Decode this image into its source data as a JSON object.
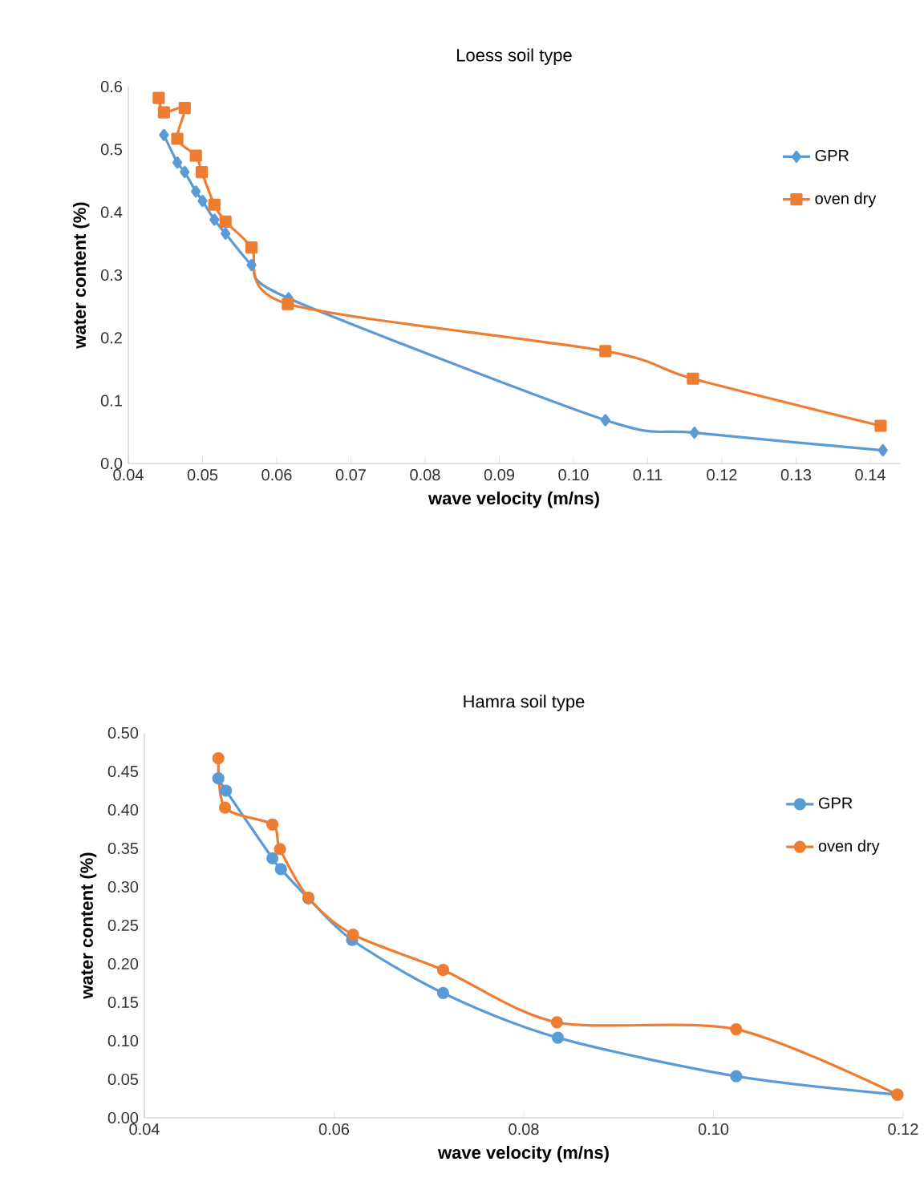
{
  "chart_data": [
    {
      "type": "line",
      "title": "Loess soil type",
      "xlabel": "wave velocity (m/ns)",
      "ylabel": "water content (%)",
      "xlim": [
        0.04,
        0.144
      ],
      "xticks": [
        0.04,
        0.05,
        0.06,
        0.07,
        0.08,
        0.09,
        {
          "value": 0.1,
          "label": "0.10"
        },
        0.11,
        0.12,
        0.13,
        0.14
      ],
      "ylim": [
        0,
        0.6
      ],
      "yticks": [
        {
          "value": 0,
          "label": "0.0"
        },
        0.1,
        0.2,
        0.3,
        0.4,
        0.5,
        0.6
      ],
      "legend": "right",
      "grid": false,
      "series": [
        {
          "name": "GPR",
          "color": "#5b9bd5",
          "marker": "diamond",
          "x": [
            0.0448,
            0.0466,
            0.0476,
            0.0491,
            0.05,
            0.0516,
            0.0531,
            0.0566,
            0.0616,
            0.1043,
            0.1163,
            0.1417
          ],
          "values": [
            0.523,
            0.479,
            0.464,
            0.433,
            0.418,
            0.388,
            0.366,
            0.316,
            0.263,
            0.069,
            0.049,
            0.021
          ]
        },
        {
          "name": "oven dry",
          "color": "#ed7d31",
          "marker": "square",
          "x": [
            0.0441,
            0.0448,
            0.0476,
            0.0466,
            0.0491,
            0.0499,
            0.0516,
            0.0531,
            0.0566,
            0.0615,
            0.1043,
            0.1161,
            0.1414
          ],
          "values": [
            0.582,
            0.559,
            0.566,
            0.517,
            0.49,
            0.464,
            0.412,
            0.385,
            0.344,
            0.254,
            0.179,
            0.135,
            0.06
          ]
        }
      ]
    },
    {
      "type": "line",
      "title": "Hamra soil type",
      "xlabel": "wave velocity (m/ns)",
      "ylabel": "water content (%)",
      "xlim": [
        0.04,
        0.12
      ],
      "xticks": [
        0.04,
        0.06,
        0.08,
        {
          "value": 0.1,
          "label": "0.10"
        },
        0.12
      ],
      "ylim": [
        0,
        0.5
      ],
      "yticks": [
        {
          "value": 0,
          "label": "0.00"
        },
        0.05,
        {
          "value": 0.1,
          "label": "0.10"
        },
        0.15,
        {
          "value": 0.2,
          "label": "0.20"
        },
        0.25,
        {
          "value": 0.3,
          "label": "0.30"
        },
        0.35,
        {
          "value": 0.4,
          "label": "0.40"
        },
        0.45,
        {
          "value": 0.5,
          "label": "0.50"
        }
      ],
      "legend": "right",
      "grid": false,
      "marker": "circle",
      "series": [
        {
          "name": "GPR",
          "color": "#5b9bd5",
          "x": [
            0.0478,
            0.0486,
            0.0535,
            0.0544,
            0.0573,
            0.0619,
            0.0715,
            0.0836,
            0.1024,
            0.1194
          ],
          "values": [
            0.441,
            0.425,
            0.337,
            0.323,
            0.285,
            0.231,
            0.162,
            0.104,
            0.054,
            0.03
          ]
        },
        {
          "name": "oven dry",
          "color": "#ed7d31",
          "x": [
            0.0478,
            0.0485,
            0.0535,
            0.0543,
            0.0573,
            0.062,
            0.0715,
            0.0835,
            0.1024,
            0.1194
          ],
          "values": [
            0.467,
            0.403,
            0.381,
            0.349,
            0.286,
            0.238,
            0.192,
            0.124,
            0.115,
            0.03
          ]
        }
      ]
    }
  ]
}
